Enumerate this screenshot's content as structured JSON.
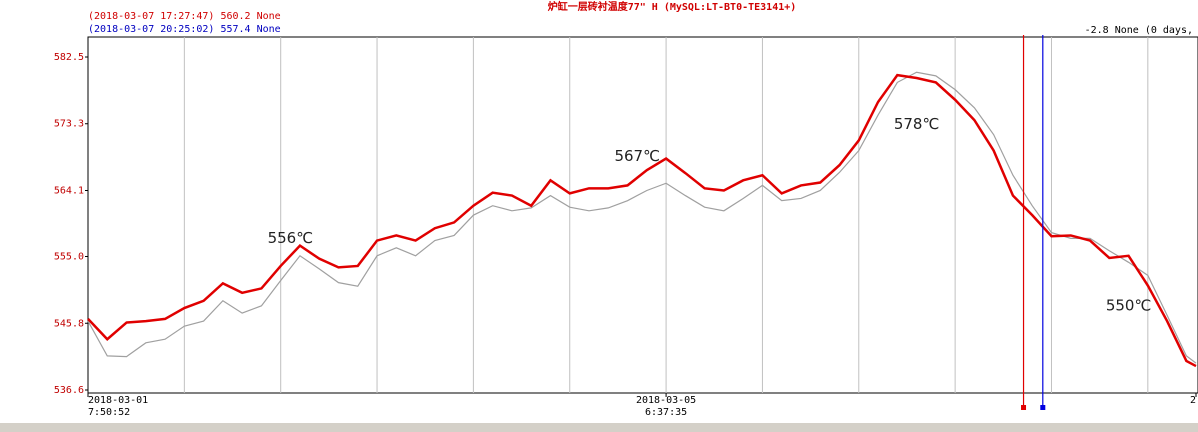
{
  "chart_data": {
    "type": "line",
    "title": "炉缸一层砖衬温度77\" H (MySQL:LT-BT0-TE3141+)",
    "readouts": [
      {
        "text": "(2018-03-07 17:27:47)  560.2 None",
        "color": "#d00000"
      },
      {
        "text": "(2018-03-07 20:25:02)  557.4 None",
        "color": "#0000c0"
      }
    ],
    "delta": "-2.8 None (0 days,",
    "xlim": [
      0,
      115
    ],
    "xticks": [
      {
        "value": 0,
        "label": "2018-03-01",
        "time": "7:50:52"
      },
      {
        "value": 60,
        "label": "2018-03-05",
        "time": "6:37:35"
      },
      {
        "value": 115,
        "label": "2"
      }
    ],
    "xgrid": [
      10,
      20,
      30,
      40,
      50,
      60,
      70,
      80,
      90,
      100,
      110
    ],
    "ylim": [
      536.6,
      582.5
    ],
    "yticks": [
      536.6,
      545.8,
      {
        "value": 555,
        "label": "555.0"
      },
      564.1,
      573.3,
      582.5
    ],
    "x": [
      0,
      2,
      4,
      6,
      8,
      10,
      12,
      14,
      16,
      18,
      20,
      22,
      24,
      26,
      28,
      30,
      32,
      34,
      36,
      38,
      40,
      42,
      44,
      46,
      48,
      50,
      52,
      54,
      56,
      58,
      60,
      62,
      64,
      66,
      68,
      70,
      72,
      74,
      76,
      78,
      80,
      82,
      84,
      86,
      88,
      90,
      92,
      94,
      96,
      98,
      100,
      102,
      104,
      106,
      108,
      110,
      112,
      114,
      115
    ],
    "series": [
      {
        "color": "#a0a0a0",
        "values": [
          546.1,
          541.3,
          541.2,
          543.1,
          543.6,
          545.4,
          546.1,
          548.9,
          547.2,
          548.2,
          551.7,
          555.1,
          553.3,
          551.4,
          550.9,
          555.1,
          556.2,
          555.1,
          557.2,
          557.9,
          560.7,
          562.0,
          561.3,
          561.7,
          563.4,
          561.8,
          561.3,
          561.7,
          562.7,
          564.1,
          565.1,
          563.4,
          561.8,
          561.3,
          563.0,
          564.8,
          562.7,
          563.0,
          564.1,
          566.6,
          569.6,
          574.5,
          579.0,
          580.4,
          579.9,
          578.0,
          575.5,
          571.8,
          566.2,
          562.0,
          558.3,
          557.5,
          557.5,
          555.8,
          554.2,
          552.4,
          546.9,
          541.3,
          540.3
        ]
      },
      {
        "color": "#e00000",
        "values": [
          546.4,
          543.6,
          545.9,
          546.1,
          546.4,
          547.9,
          548.9,
          551.3,
          550.0,
          550.6,
          553.7,
          556.5,
          554.7,
          553.5,
          553.7,
          557.2,
          557.9,
          557.2,
          558.9,
          559.7,
          562.0,
          563.8,
          563.4,
          562.0,
          565.5,
          563.7,
          564.4,
          564.4,
          564.8,
          566.9,
          568.5,
          566.5,
          564.4,
          564.1,
          565.5,
          566.2,
          563.7,
          564.8,
          565.2,
          567.6,
          571.0,
          576.3,
          580.0,
          579.6,
          579.0,
          576.6,
          573.8,
          569.6,
          563.4,
          560.7,
          557.8,
          557.9,
          557.2,
          554.8,
          555.1,
          551.0,
          546.1,
          540.6,
          539.9
        ]
      }
    ],
    "cursors": [
      {
        "x": 97.1,
        "color": "#e00000"
      },
      {
        "x": 99.1,
        "color": "#0000e0"
      }
    ],
    "annotations": [
      {
        "text": "556℃",
        "x": 21,
        "y": 557.5
      },
      {
        "text": "567℃",
        "x": 57,
        "y": 568.8
      },
      {
        "text": "578℃",
        "x": 86,
        "y": 573.2
      },
      {
        "text": "550℃",
        "x": 108,
        "y": 548.2
      }
    ]
  }
}
